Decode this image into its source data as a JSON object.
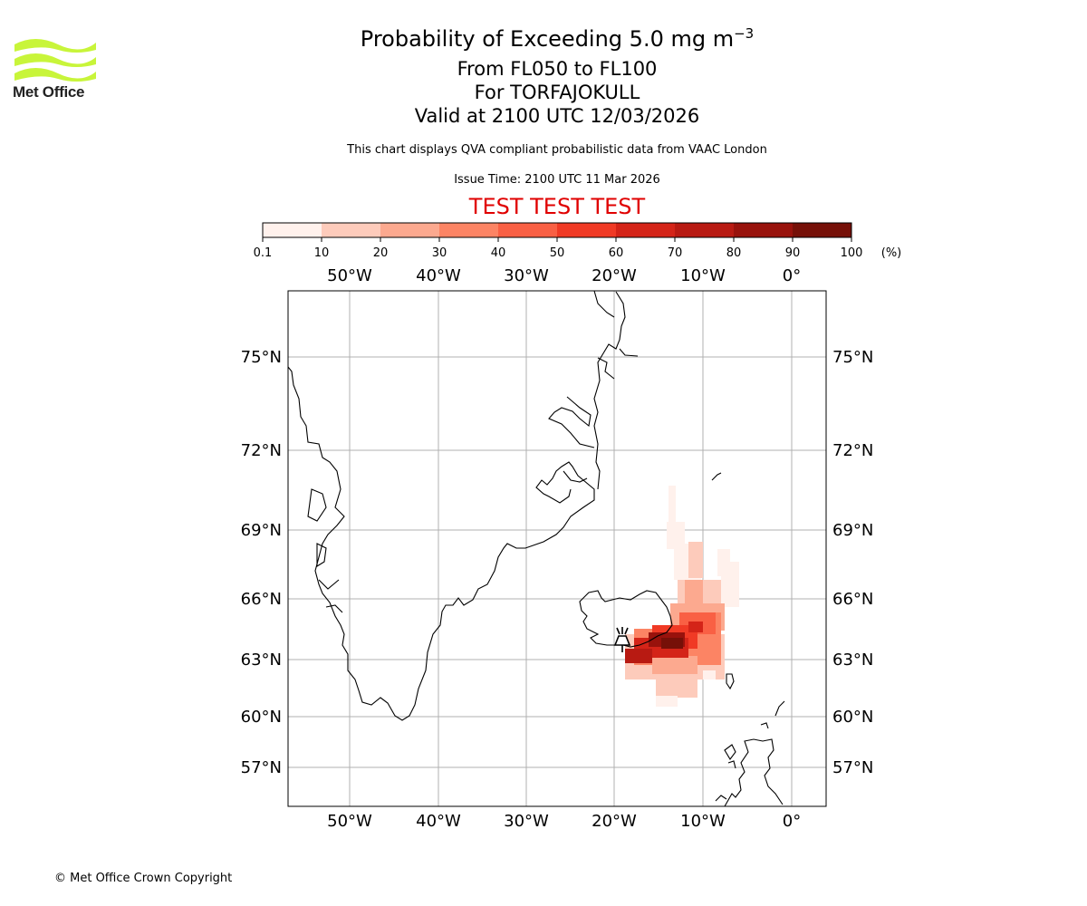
{
  "header": {
    "title": "Probability of Exceeding 5.0 mg m",
    "title_exp": "−3",
    "levels": "From FL050 to FL100",
    "volcano": "For TORFAJOKULL",
    "valid": "Valid at 2100 UTC 12/03/2026",
    "note": "This chart displays QVA compliant probabilistic data from VAAC London",
    "issue": "Issue Time: 2100 UTC 11 Mar 2026",
    "banner": "TEST TEST TEST"
  },
  "logo": {
    "text": "Met Office",
    "color": "#c8f53a"
  },
  "colorbar": {
    "ticks": [
      "0.1",
      "10",
      "20",
      "30",
      "40",
      "50",
      "60",
      "70",
      "80",
      "90",
      "100"
    ],
    "unit": "(%)",
    "colors": [
      "#fff1ec",
      "#fdcbbb",
      "#fca98f",
      "#fc8464",
      "#f96044",
      "#f03a25",
      "#d42418",
      "#b81a12",
      "#98120c",
      "#761008"
    ]
  },
  "map": {
    "lon_labels": [
      "50°W",
      "40°W",
      "30°W",
      "20°W",
      "10°W",
      "0°"
    ],
    "lat_labels": [
      "75°N",
      "72°N",
      "69°N",
      "66°N",
      "63°N",
      "60°N",
      "57°N"
    ],
    "grid_color": "#b0b0b0",
    "volcano_icon": "volcano-icon"
  },
  "footer": {
    "copyright": "© Met Office Crown Copyright"
  }
}
